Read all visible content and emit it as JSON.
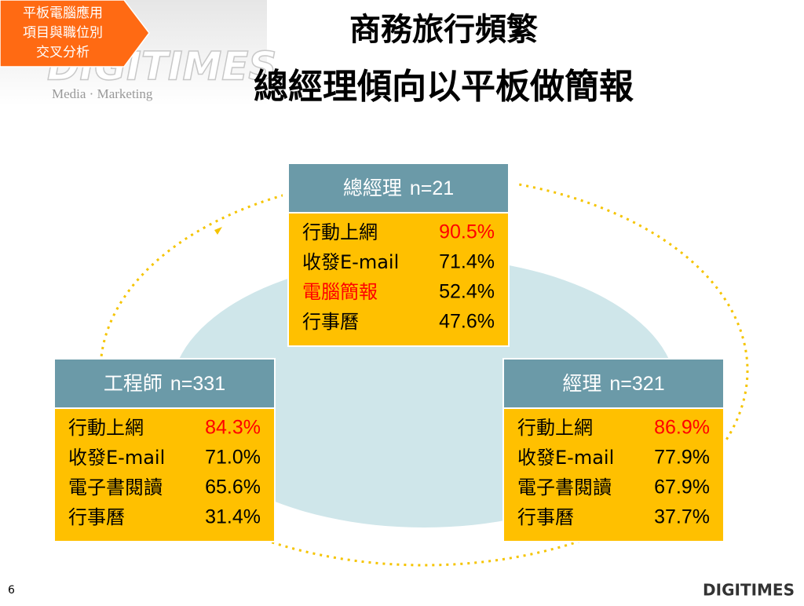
{
  "badge": {
    "lines": [
      "平板電腦應用",
      "項目與職位別",
      "交叉分析"
    ]
  },
  "watermark": {
    "logo": "DIGITIMES",
    "tagline": "Media · Marketing"
  },
  "title": {
    "lines": [
      "商務旅行頻繁",
      "總經理傾向以平板做簡報"
    ]
  },
  "header_color": "#6b9aa8",
  "body_color": "#ffc000",
  "groups": [
    {
      "role": "總經理",
      "n": "n=21",
      "items": [
        {
          "label": "行動上網",
          "value": "90.5%",
          "value_color": "#ff0000"
        },
        {
          "label": "收發E-mail",
          "value": "71.4%"
        },
        {
          "label": "電腦簡報",
          "value": "52.4%",
          "label_color": "#ff0000"
        },
        {
          "label": "行事曆",
          "value": "47.6%"
        }
      ]
    },
    {
      "role": "工程師",
      "n": "n=331",
      "items": [
        {
          "label": "行動上網",
          "value": "84.3%",
          "value_color": "#ff0000"
        },
        {
          "label": "收發E-mail",
          "value": "71.0%"
        },
        {
          "label": "電子書閱讀",
          "value": "65.6%"
        },
        {
          "label": "行事曆",
          "value": "31.4%"
        }
      ]
    },
    {
      "role": "經理",
      "n": "n=321",
      "items": [
        {
          "label": "行動上網",
          "value": "86.9%",
          "value_color": "#ff0000"
        },
        {
          "label": "收發E-mail",
          "value": "77.9%"
        },
        {
          "label": "電子書閱讀",
          "value": "67.9%"
        },
        {
          "label": "行事曆",
          "value": "37.7%"
        }
      ]
    }
  ],
  "footer": {
    "page": "6",
    "logo": "DIGITIMES"
  }
}
